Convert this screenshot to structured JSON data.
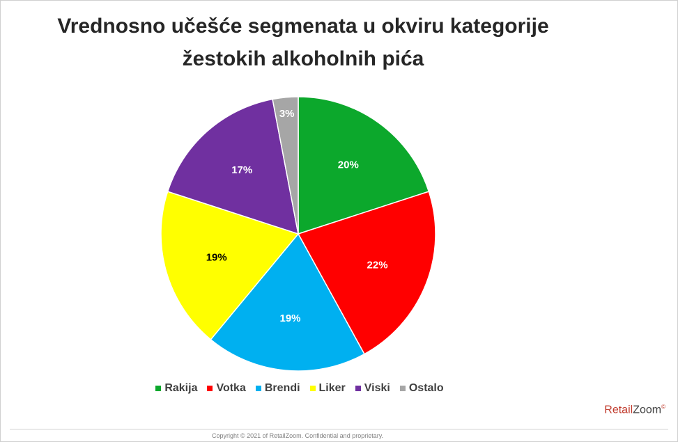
{
  "title_line1": "Vrednosno učešće segmenata u okviru kategorije",
  "title_line2": "žestokih alkoholnih pića",
  "chart_data": {
    "type": "pie",
    "title": "Vrednosno učešće segmenata u okviru kategorije žestokih alkoholnih pića",
    "legend_position": "bottom",
    "slices": [
      {
        "name": "Rakija",
        "value": 20,
        "label": "20%",
        "color": "#0CA82C",
        "label_color": "#ffffff"
      },
      {
        "name": "Votka",
        "value": 22,
        "label": "22%",
        "color": "#FF0000",
        "label_color": "#ffffff"
      },
      {
        "name": "Brendi",
        "value": 19,
        "label": "19%",
        "color": "#00B0F0",
        "label_color": "#ffffff"
      },
      {
        "name": "Liker",
        "value": 19,
        "label": "19%",
        "color": "#FFFF00",
        "label_color": "#000000"
      },
      {
        "name": "Viski",
        "value": 17,
        "label": "17%",
        "color": "#7030A0",
        "label_color": "#ffffff"
      },
      {
        "name": "Ostalo",
        "value": 3,
        "label": "3%",
        "color": "#A6A6A6",
        "label_color": "#ffffff"
      }
    ]
  },
  "legend": [
    {
      "label": "Rakija",
      "color": "#0CA82C"
    },
    {
      "label": "Votka",
      "color": "#FF0000"
    },
    {
      "label": "Brendi",
      "color": "#00B0F0"
    },
    {
      "label": "Liker",
      "color": "#FFFF00"
    },
    {
      "label": "Viski",
      "color": "#7030A0"
    },
    {
      "label": "Ostalo",
      "color": "#A6A6A6"
    }
  ],
  "brand": {
    "part1": "Retail",
    "part2": "Zoom",
    "mark": "©"
  },
  "copyright": "Copyright © 2021 of RetailZoom. Confidential and proprietary."
}
